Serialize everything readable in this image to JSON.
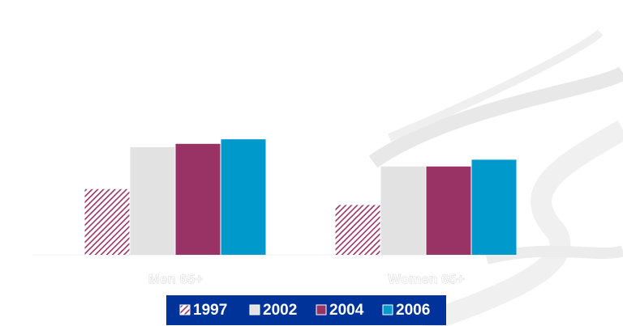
{
  "chart_data": {
    "type": "bar",
    "categories": [
      "Men 65+",
      "Women 65+"
    ],
    "series": [
      {
        "name": "1997",
        "color": "#993366",
        "pattern": "hatch",
        "values": [
          29,
          22
        ]
      },
      {
        "name": "2002",
        "color": "#e2e2e2",
        "values": [
          47.5,
          39
        ]
      },
      {
        "name": "2004",
        "color": "#993366",
        "values": [
          49,
          39
        ]
      },
      {
        "name": "2006",
        "color": "#0099cc",
        "values": [
          51,
          42
        ]
      }
    ],
    "ylim": [
      0,
      100
    ],
    "legend": "bottom"
  }
}
